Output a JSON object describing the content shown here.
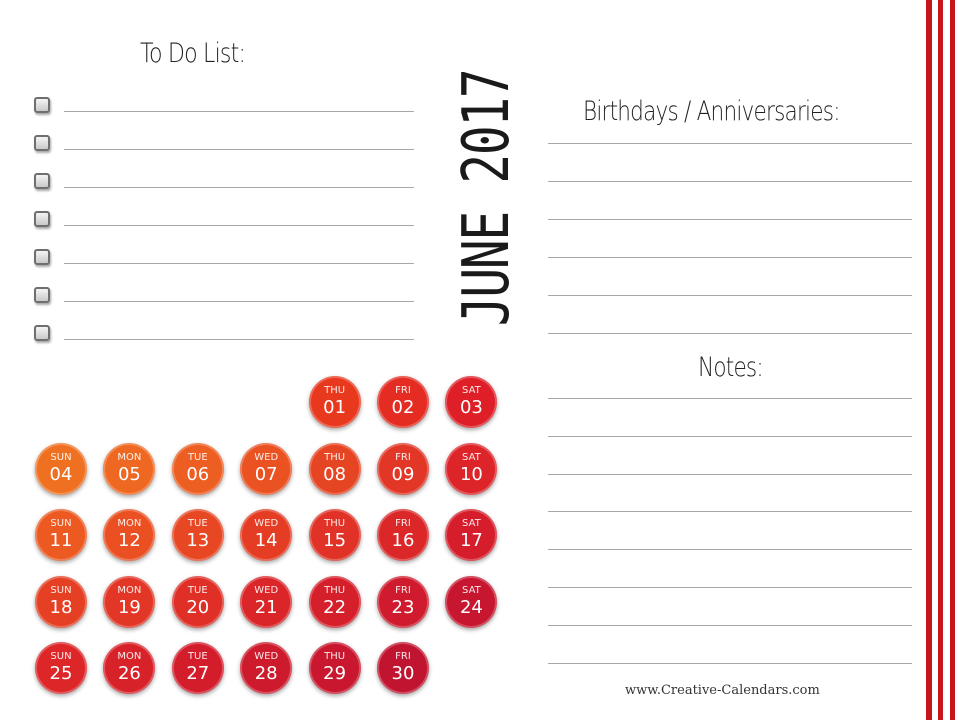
{
  "todo": {
    "title": "To Do List:",
    "checkbox_count": 7
  },
  "month": {
    "title": "JUNE 2017"
  },
  "birthdays": {
    "title": "Birthdays / Anniversaries:",
    "line_count": 6
  },
  "notes": {
    "title": "Notes:",
    "line_count": 8
  },
  "footer": {
    "text": "www.Creative-Calendars.com"
  },
  "colors": {
    "stripe": "#c8151b"
  },
  "calendar": {
    "days": [
      {
        "dow": "THU",
        "num": "01",
        "color": "#e8391f"
      },
      {
        "dow": "FRI",
        "num": "02",
        "color": "#e42c22"
      },
      {
        "dow": "SAT",
        "num": "03",
        "color": "#de1f27"
      },
      {
        "dow": "SUN",
        "num": "04",
        "color": "#f07022"
      },
      {
        "dow": "MON",
        "num": "05",
        "color": "#ef6822"
      },
      {
        "dow": "TUE",
        "num": "06",
        "color": "#ed5e22"
      },
      {
        "dow": "WED",
        "num": "07",
        "color": "#ea5222"
      },
      {
        "dow": "THU",
        "num": "08",
        "color": "#e64523"
      },
      {
        "dow": "FRI",
        "num": "09",
        "color": "#e23626"
      },
      {
        "dow": "SAT",
        "num": "10",
        "color": "#dc2429"
      },
      {
        "dow": "SUN",
        "num": "11",
        "color": "#ec5a22"
      },
      {
        "dow": "MON",
        "num": "12",
        "color": "#ea5022"
      },
      {
        "dow": "TUE",
        "num": "13",
        "color": "#e74723"
      },
      {
        "dow": "WED",
        "num": "14",
        "color": "#e43d24"
      },
      {
        "dow": "THU",
        "num": "15",
        "color": "#e03226"
      },
      {
        "dow": "FRI",
        "num": "16",
        "color": "#db2728"
      },
      {
        "dow": "SAT",
        "num": "17",
        "color": "#d51d2b"
      },
      {
        "dow": "SUN",
        "num": "18",
        "color": "#e54024"
      },
      {
        "dow": "MON",
        "num": "19",
        "color": "#e23726"
      },
      {
        "dow": "TUE",
        "num": "20",
        "color": "#df2f27"
      },
      {
        "dow": "WED",
        "num": "21",
        "color": "#da2629"
      },
      {
        "dow": "THU",
        "num": "22",
        "color": "#d5202b"
      },
      {
        "dow": "FRI",
        "num": "23",
        "color": "#cf1b2d"
      },
      {
        "dow": "SAT",
        "num": "24",
        "color": "#c7162f"
      },
      {
        "dow": "SUN",
        "num": "25",
        "color": "#dc2628"
      },
      {
        "dow": "MON",
        "num": "26",
        "color": "#d8222a"
      },
      {
        "dow": "TUE",
        "num": "27",
        "color": "#d31d2b"
      },
      {
        "dow": "WED",
        "num": "28",
        "color": "#ce1a2d"
      },
      {
        "dow": "THU",
        "num": "29",
        "color": "#c8172f"
      },
      {
        "dow": "FRI",
        "num": "30",
        "color": "#c11431"
      }
    ]
  }
}
